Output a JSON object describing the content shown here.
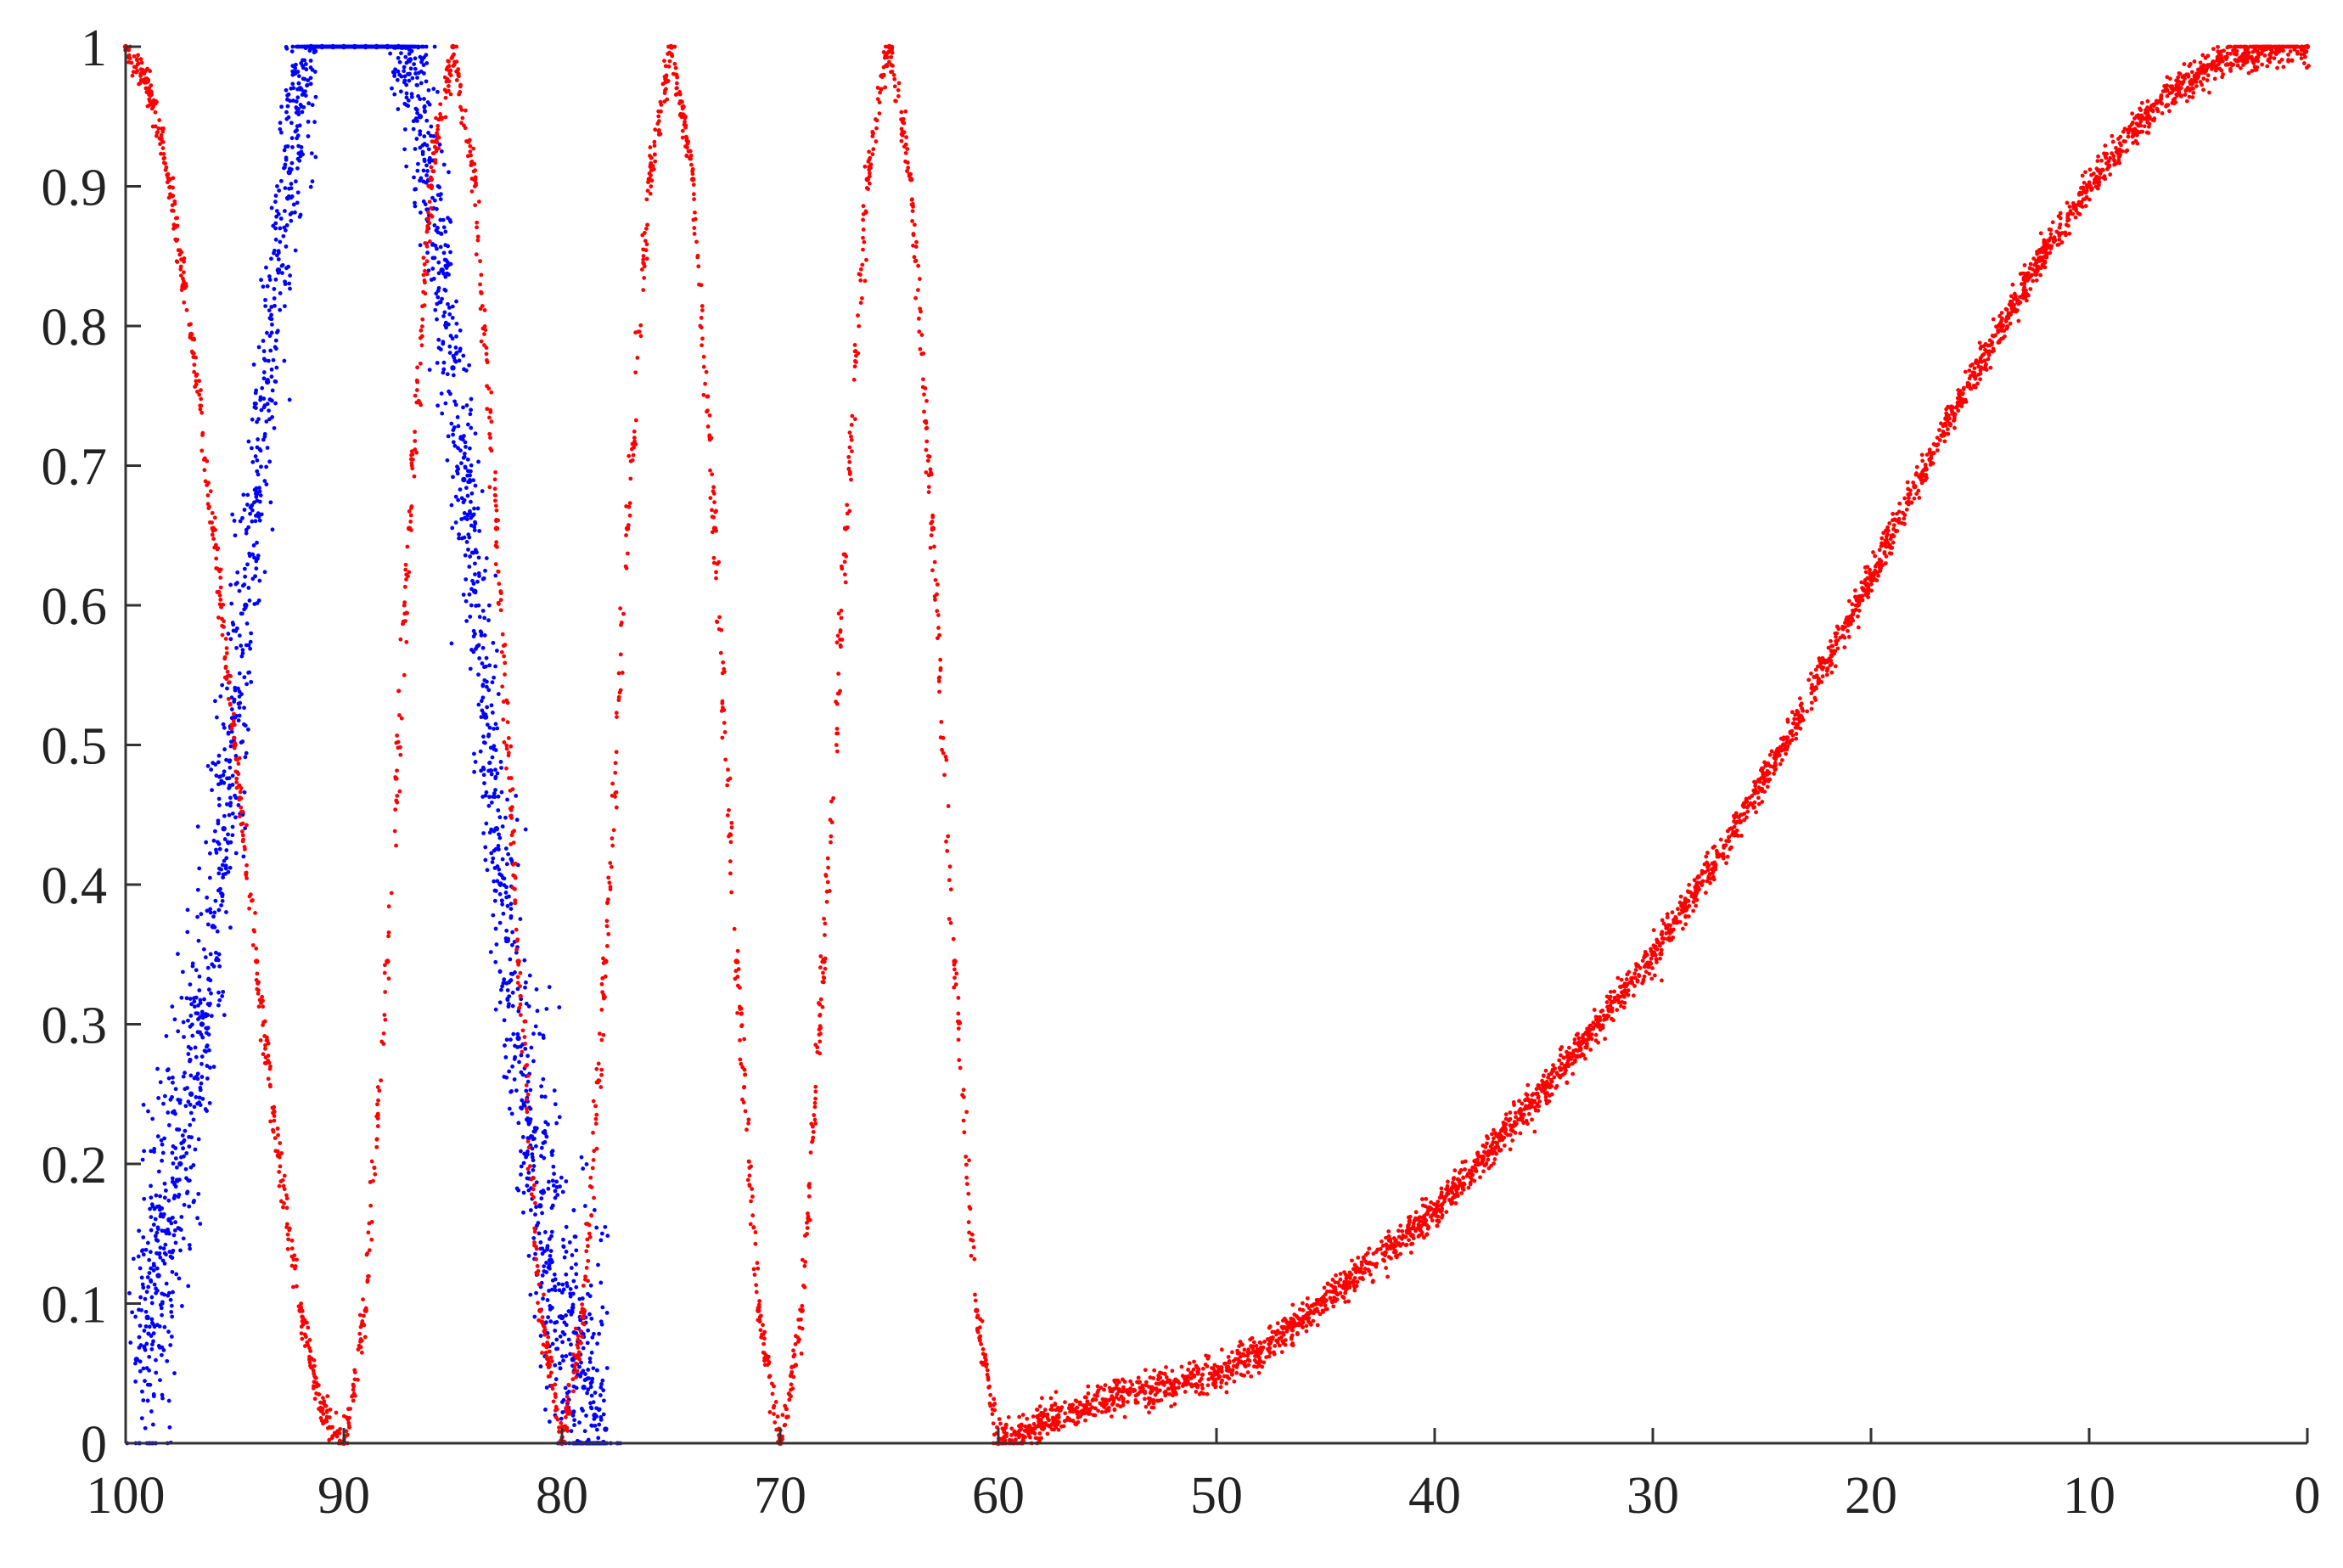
{
  "chart_data": {
    "type": "scatter",
    "title": "",
    "xlabel": "",
    "ylabel": "",
    "x_reversed": true,
    "xlim": [
      100,
      0
    ],
    "ylim": [
      0,
      1
    ],
    "grid": false,
    "legend": "none",
    "x_ticks": [
      100,
      90,
      80,
      70,
      60,
      50,
      40,
      30,
      20,
      10,
      0
    ],
    "x_tick_labels": [
      "100",
      "90",
      "80",
      "70",
      "60",
      "50",
      "40",
      "30",
      "20",
      "10",
      "0"
    ],
    "y_ticks": [
      0,
      0.1,
      0.2,
      0.3,
      0.4,
      0.5,
      0.6,
      0.7,
      0.8,
      0.9,
      1
    ],
    "y_tick_labels": [
      "0",
      "0.1",
      "0.2",
      "0.3",
      "0.4",
      "0.5",
      "0.6",
      "0.7",
      "0.8",
      "0.9",
      "1"
    ],
    "series": [
      {
        "color": "#0000ff",
        "x": [
          99.5,
          99,
          98.5,
          98,
          97.5,
          97,
          96.5,
          96,
          95.5,
          95,
          94.5,
          94,
          93.5,
          93,
          92.5,
          92,
          91.5,
          91,
          90.5,
          90,
          89.5,
          89,
          88.5,
          88,
          87.5,
          87,
          86.5,
          86,
          85.5,
          85,
          84.5,
          84,
          83.5,
          83,
          82.5,
          82,
          81.5,
          81,
          80.5,
          80,
          79.5,
          79,
          78.5,
          78
        ],
        "y": [
          0.06,
          0.09,
          0.12,
          0.16,
          0.2,
          0.25,
          0.3,
          0.37,
          0.44,
          0.52,
          0.6,
          0.68,
          0.76,
          0.84,
          0.91,
          0.97,
          1.0,
          1.0,
          1.0,
          1.0,
          1.0,
          1.0,
          1.0,
          1.0,
          1.0,
          0.99,
          0.95,
          0.9,
          0.84,
          0.77,
          0.69,
          0.61,
          0.52,
          0.44,
          0.36,
          0.29,
          0.23,
          0.17,
          0.13,
          0.09,
          0.06,
          0.04,
          0.02,
          0.01
        ]
      },
      {
        "color": "#ff0000",
        "x": [
          100,
          99,
          98,
          97,
          96,
          95,
          94,
          93,
          92,
          91,
          90,
          89,
          88,
          87,
          86,
          85,
          84,
          83,
          82,
          81,
          80,
          79,
          78,
          77,
          76,
          75,
          74,
          73,
          72,
          71,
          70,
          69,
          68,
          67,
          66,
          65,
          64,
          63,
          62,
          61,
          60,
          58,
          56,
          54,
          52,
          50,
          48,
          46,
          44,
          42,
          40,
          38,
          36,
          34,
          32,
          30,
          28,
          26,
          24,
          22,
          20,
          18,
          16,
          14,
          12,
          10,
          8,
          6,
          4,
          2,
          0
        ],
        "y": [
          1.0,
          0.976,
          0.905,
          0.794,
          0.655,
          0.5,
          0.345,
          0.206,
          0.095,
          0.024,
          0.0,
          0.095,
          0.345,
          0.655,
          0.905,
          1.0,
          0.905,
          0.655,
          0.345,
          0.095,
          0.0,
          0.095,
          0.345,
          0.655,
          0.905,
          1.0,
          0.905,
          0.655,
          0.345,
          0.095,
          0.0,
          0.095,
          0.345,
          0.655,
          0.905,
          1.0,
          0.905,
          0.655,
          0.345,
          0.095,
          0.0,
          0.014,
          0.026,
          0.036,
          0.042,
          0.05,
          0.065,
          0.09,
          0.115,
          0.14,
          0.165,
          0.2,
          0.235,
          0.27,
          0.31,
          0.35,
          0.395,
          0.445,
          0.5,
          0.56,
          0.62,
          0.685,
          0.745,
          0.8,
          0.855,
          0.9,
          0.94,
          0.97,
          0.99,
          0.998,
          1.0
        ]
      }
    ]
  }
}
